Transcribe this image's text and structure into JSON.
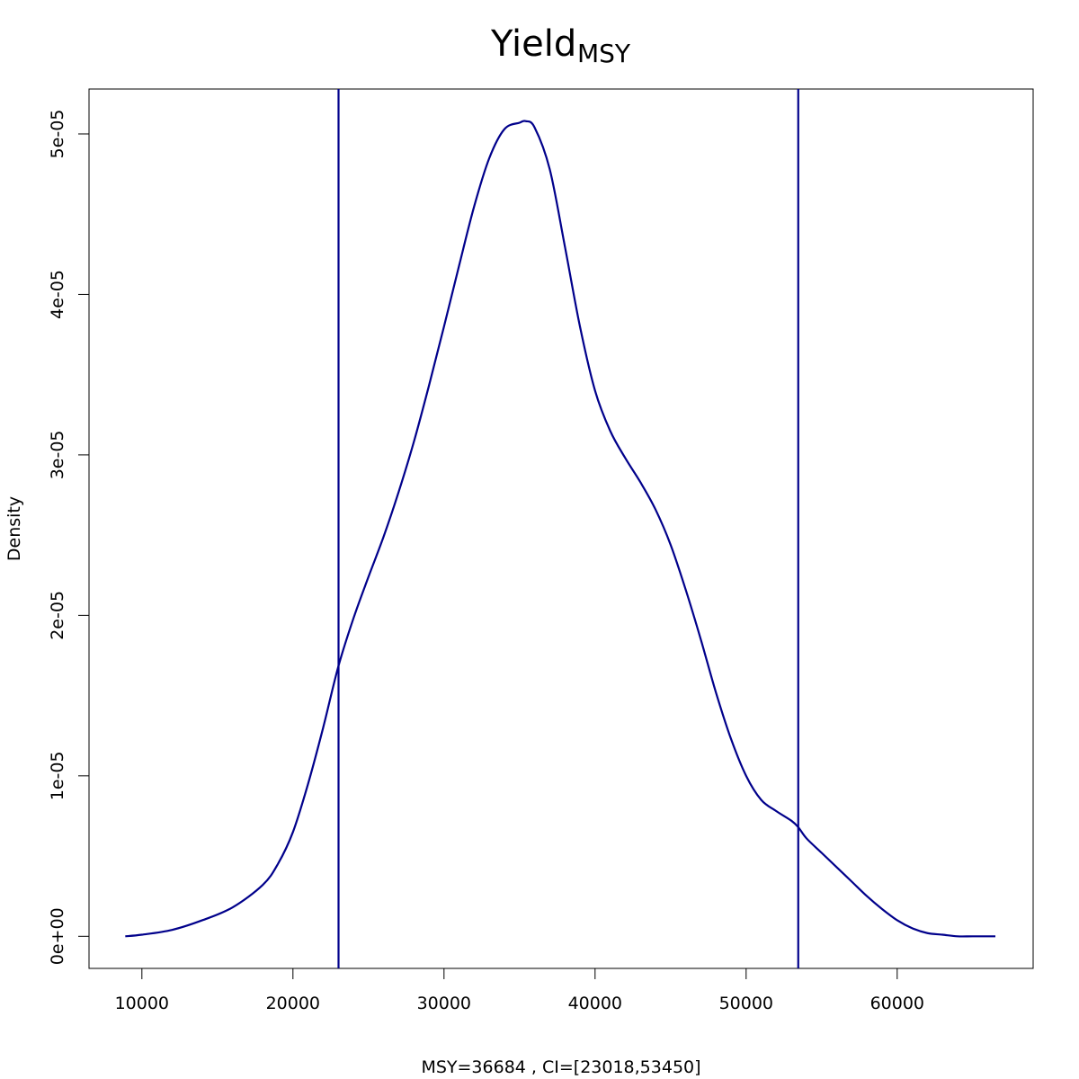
{
  "chart_data": {
    "type": "line",
    "title": "Yield",
    "title_subscript": "MSY",
    "xlabel": "MSY=36684 , CI=[23018,53450]",
    "ylabel": "Density",
    "xlim": [
      6500,
      69000
    ],
    "ylim": [
      -2e-06,
      5.28e-05
    ],
    "x_ticks": [
      10000,
      20000,
      30000,
      40000,
      50000,
      60000
    ],
    "x_tick_labels": [
      "10000",
      "20000",
      "30000",
      "40000",
      "50000",
      "60000"
    ],
    "y_ticks": [
      0,
      1e-05,
      2e-05,
      3e-05,
      4e-05,
      5e-05
    ],
    "y_tick_labels": [
      "0e+00",
      "1e-05",
      "2e-05",
      "3e-05",
      "4e-05",
      "5e-05"
    ],
    "grid": false,
    "line_color": "#00008B",
    "vertical_lines": [
      23018,
      53450
    ],
    "series": [
      {
        "x": [
          8900,
          10000,
          12000,
          14000,
          16000,
          18000,
          19000,
          20000,
          21000,
          22000,
          23000,
          24000,
          25000,
          26000,
          27000,
          28000,
          29000,
          30000,
          31000,
          32000,
          33000,
          34000,
          35000,
          35400,
          36000,
          37000,
          38000,
          39000,
          40000,
          41000,
          42000,
          43000,
          44000,
          45000,
          46000,
          47000,
          48000,
          49000,
          50000,
          51000,
          52000,
          53000,
          53450,
          54000,
          55000,
          56000,
          57000,
          58000,
          59000,
          60000,
          61000,
          62000,
          63000,
          64000,
          65000,
          66500
        ],
        "y": [
          0.0,
          1e-07,
          4e-07,
          1e-06,
          1.8e-06,
          3.2e-06,
          4.5e-06,
          6.5e-06,
          9.5e-06,
          1.3e-05,
          1.68e-05,
          1.98e-05,
          2.24e-05,
          2.49e-05,
          2.77e-05,
          3.08e-05,
          3.43e-05,
          3.8e-05,
          4.18e-05,
          4.55e-05,
          4.85e-05,
          5.03e-05,
          5.07e-05,
          5.08e-05,
          5.04e-05,
          4.78e-05,
          4.3e-05,
          3.8e-05,
          3.4e-05,
          3.15e-05,
          2.98e-05,
          2.83e-05,
          2.66e-05,
          2.44e-05,
          2.16e-05,
          1.85e-05,
          1.52e-05,
          1.23e-05,
          1e-05,
          8.5e-06,
          7.8e-06,
          7.2e-06,
          6.8e-06,
          6.1e-06,
          5.2e-06,
          4.3e-06,
          3.4e-06,
          2.5e-06,
          1.7e-06,
          1e-06,
          5e-07,
          2e-07,
          1e-07,
          0.0,
          0.0,
          0.0
        ]
      }
    ]
  }
}
